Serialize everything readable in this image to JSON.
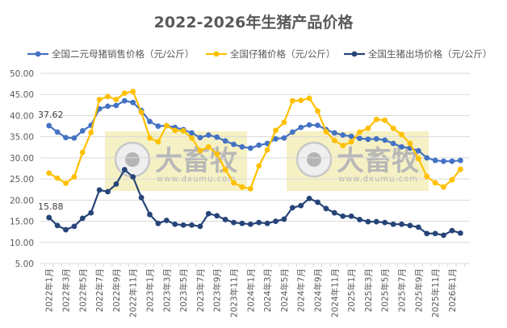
{
  "chart_data": {
    "type": "line",
    "title": "2022-2026年生猪产品价格",
    "xlabel": "",
    "ylabel": "",
    "ylim": [
      5,
      50
    ],
    "y_ticks": [
      "5.00",
      "10.00",
      "15.00",
      "20.00",
      "25.00",
      "30.00",
      "35.00",
      "40.00",
      "45.00",
      "50.00"
    ],
    "x_tick_labels": [
      "2022年1月",
      "2022年3月",
      "2022年5月",
      "2022年7月",
      "2022年9月",
      "2022年11月",
      "2023年1月",
      "2023年3月",
      "2023年5月",
      "2023年7月",
      "2023年9月",
      "2023年11月",
      "2024年1月",
      "2024年3月",
      "2024年5月",
      "2024年7月",
      "2024年9月",
      "2024年11月",
      "2025年1月",
      "2025年3月",
      "2025年5月",
      "2025年7月",
      "2025年9月",
      "2025年11月",
      "2026年1月"
    ],
    "grid": "horizontal",
    "legend_position": "top",
    "series": [
      {
        "name": "全国二元母猪销售价格（元/公斤）",
        "color": "#4472C4",
        "values": [
          37.62,
          36.1,
          34.8,
          34.7,
          36.4,
          37.7,
          41.6,
          42.2,
          42.4,
          43.5,
          43.1,
          41.2,
          38.6,
          37.5,
          37.6,
          37.2,
          36.7,
          35.9,
          34.8,
          35.4,
          34.9,
          34.0,
          33.2,
          32.6,
          32.3,
          33.0,
          33.4,
          34.5,
          34.7,
          36.1,
          37.2,
          37.8,
          37.7,
          36.7,
          35.9,
          35.4,
          35.1,
          34.6,
          34.4,
          34.5,
          34.2,
          33.4,
          32.6,
          32.3,
          31.7,
          30.0,
          29.4,
          29.2,
          29.2,
          29.4
        ],
        "data_label": "37.62"
      },
      {
        "name": "全国仔猪价格（元/公斤）",
        "color": "#FFC000",
        "values": [
          26.4,
          25.2,
          24.0,
          25.5,
          31.3,
          36.0,
          43.8,
          44.5,
          43.8,
          45.3,
          45.7,
          40.8,
          34.7,
          33.8,
          37.6,
          36.5,
          36.4,
          34.7,
          31.7,
          32.6,
          30.9,
          27.2,
          24.1,
          23.1,
          22.7,
          28.1,
          31.9,
          36.5,
          38.4,
          43.5,
          43.6,
          44.1,
          41.1,
          36.2,
          34.1,
          32.9,
          33.8,
          36.1,
          37.0,
          39.1,
          38.9,
          37.0,
          35.5,
          33.4,
          29.8,
          25.6,
          24.1,
          23.1,
          24.8,
          27.3
        ]
      },
      {
        "name": "全国生猪出场价格（元/公斤）",
        "color": "#264478",
        "values": [
          15.88,
          14.0,
          13.0,
          13.8,
          15.7,
          17.0,
          22.4,
          22.0,
          23.8,
          27.2,
          25.5,
          20.6,
          16.6,
          14.5,
          15.2,
          14.3,
          14.1,
          14.1,
          13.8,
          16.8,
          16.3,
          15.4,
          14.7,
          14.5,
          14.3,
          14.7,
          14.5,
          15.0,
          15.5,
          18.2,
          18.7,
          20.4,
          19.5,
          18.0,
          17.0,
          16.2,
          16.2,
          15.4,
          14.9,
          14.9,
          14.7,
          14.3,
          14.3,
          14.0,
          13.6,
          12.1,
          12.1,
          11.7,
          12.8,
          12.2
        ],
        "data_label": "15.88"
      }
    ]
  },
  "watermark": {
    "brand": "大畜牧",
    "url": "www.dxumu.com"
  }
}
